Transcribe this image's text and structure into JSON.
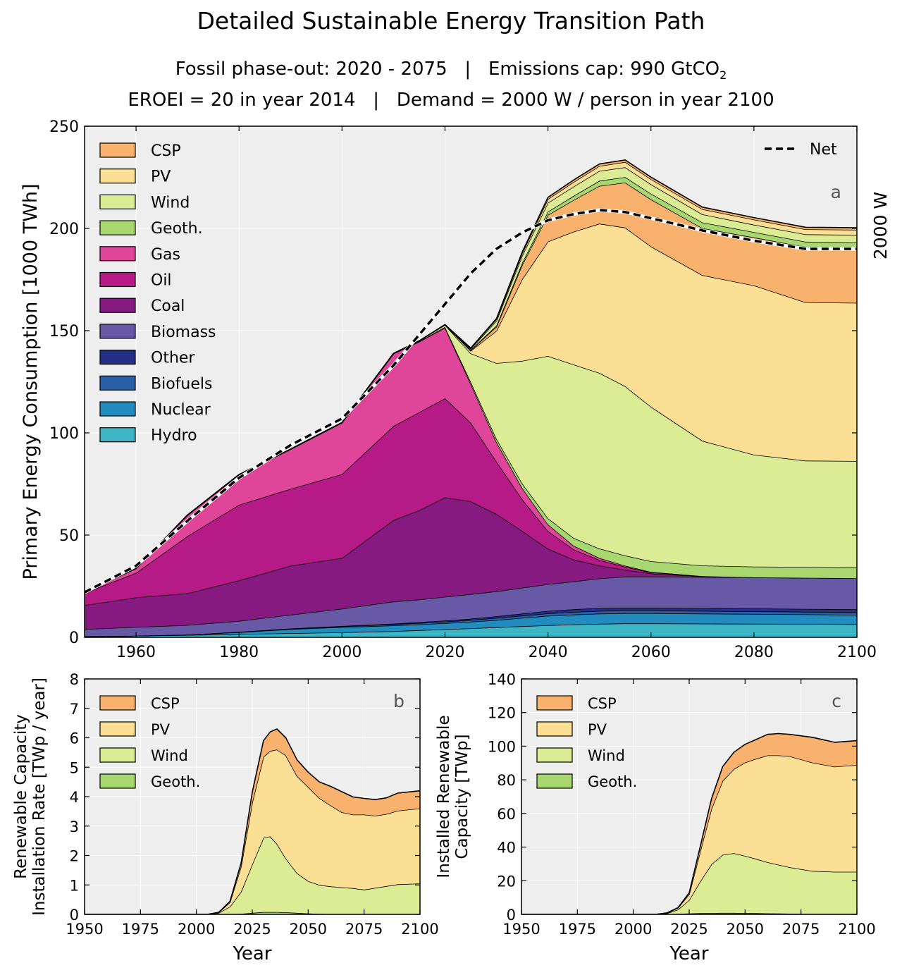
{
  "figure": {
    "title": "Detailed Sustainable Energy Transition Path",
    "subtitle_phaseout": "Fossil phase-out: 2020 - 2075",
    "subtitle_sep": "|",
    "subtitle_cap": "Emissions cap: 990 GtCO",
    "subtitle_cap_sub": "2",
    "subtitle2": "EROEI = 20 in year 2014   |   Demand = 2000 W / person in year 2100"
  },
  "colors": {
    "CSP": "#f9b26d",
    "PV": "#fbdf94",
    "Wind": "#dbec95",
    "Geoth.": "#a9d76f",
    "Gas": "#df4599",
    "Oil": "#b51a86",
    "Coal": "#861a80",
    "Biomass": "#6859a6",
    "Other": "#262f88",
    "Biofuels": "#2a5ea7",
    "Nuclear": "#228cbe",
    "Hydro": "#3eb5c4",
    "background": "#eeeeee",
    "grid": "#ffffff"
  },
  "chart_data": [
    {
      "id": "a",
      "type": "area",
      "stacked": true,
      "panel_label": "a",
      "right_label": "2000 W",
      "ylabel": "Primary Energy Consumption [1000 TWh]",
      "xlabel": "",
      "xlim": [
        1950,
        2100
      ],
      "ylim": [
        0,
        250
      ],
      "xticks": [
        1960,
        1980,
        2000,
        2020,
        2040,
        2060,
        2080,
        2100
      ],
      "yticks": [
        0,
        50,
        100,
        150,
        200,
        250
      ],
      "grid": true,
      "legend_position": "upper-left",
      "legend_order": [
        "CSP",
        "PV",
        "Wind",
        "Geoth.",
        "Gas",
        "Oil",
        "Coal",
        "Biomass",
        "Other",
        "Biofuels",
        "Nuclear",
        "Hydro"
      ],
      "net_legend": "Net",
      "x": [
        1950,
        1960,
        1970,
        1980,
        1990,
        2000,
        2010,
        2015,
        2020,
        2025,
        2030,
        2035,
        2040,
        2045,
        2050,
        2055,
        2060,
        2070,
        2080,
        2090,
        2100
      ],
      "series": [
        {
          "name": "Hydro",
          "values": [
            0.5,
            0.8,
            1.1,
            1.6,
            2.0,
            2.4,
            3.0,
            3.5,
            3.9,
            4.4,
            4.9,
            5.4,
            5.9,
            6.3,
            6.6,
            6.8,
            6.8,
            6.7,
            6.6,
            6.5,
            6.4
          ]
        },
        {
          "name": "Nuclear",
          "values": [
            0.0,
            0.0,
            0.2,
            0.9,
            2.0,
            2.6,
            2.8,
            2.8,
            3.0,
            3.2,
            3.6,
            4.1,
            4.6,
            4.8,
            5.0,
            5.0,
            5.0,
            4.9,
            4.8,
            4.7,
            4.6
          ]
        },
        {
          "name": "Biofuels",
          "values": [
            0.0,
            0.0,
            0.0,
            0.1,
            0.2,
            0.3,
            0.6,
            0.7,
            0.8,
            0.9,
            1.0,
            1.1,
            1.2,
            1.3,
            1.3,
            1.3,
            1.3,
            1.3,
            1.3,
            1.3,
            1.3
          ]
        },
        {
          "name": "Other",
          "values": [
            0.0,
            0.0,
            0.0,
            0.1,
            0.1,
            0.2,
            0.3,
            0.4,
            0.5,
            0.6,
            0.8,
            1.0,
            1.2,
            1.3,
            1.4,
            1.4,
            1.4,
            1.4,
            1.4,
            1.4,
            1.4
          ]
        },
        {
          "name": "Biomass",
          "values": [
            3.5,
            4.2,
            4.7,
            5.3,
            6.7,
            8.5,
            10.8,
            11.1,
            11.6,
            12.0,
            12.2,
            12.6,
            13.1,
            13.6,
            14.5,
            15.2,
            15.2,
            15.2,
            15.2,
            15.2,
            15.2
          ]
        },
        {
          "name": "Coal",
          "values": [
            11.7,
            14.5,
            15.5,
            19.8,
            24.0,
            24.8,
            39.8,
            43.6,
            48.6,
            45.4,
            37.8,
            27.8,
            17.3,
            10.7,
            6.3,
            3.3,
            1.5,
            0.3,
            0.0,
            0.0,
            0.0
          ]
        },
        {
          "name": "Oil",
          "values": [
            6.0,
            12.0,
            28.0,
            37.0,
            37.6,
            41.0,
            46.0,
            48.0,
            48.5,
            38.5,
            25.7,
            15.5,
            8.7,
            5.0,
            2.7,
            1.5,
            0.6,
            0.1,
            0.0,
            0.0,
            0.0
          ]
        },
        {
          "name": "Gas",
          "values": [
            0.5,
            2.2,
            10.3,
            14.8,
            19.4,
            25.2,
            35.5,
            34.5,
            34.5,
            19.0,
            9.5,
            5.5,
            3.2,
            1.8,
            1.0,
            0.5,
            0.2,
            0.0,
            0.0,
            0.0,
            0.0
          ]
        },
        {
          "name": "Geoth.",
          "values": [
            0.0,
            0.0,
            0.0,
            0.0,
            0.0,
            0.0,
            0.0,
            0.1,
            0.4,
            1.0,
            1.6,
            2.2,
            3.0,
            3.8,
            4.6,
            5.0,
            5.2,
            5.2,
            5.3,
            5.3,
            5.3
          ]
        },
        {
          "name": "Wind",
          "values": [
            0.0,
            0.0,
            0.0,
            0.0,
            0.0,
            0.0,
            0.0,
            0.3,
            1.0,
            13.9,
            37.0,
            60.0,
            79.4,
            84.8,
            85.9,
            82.8,
            75.6,
            61.0,
            54.7,
            52.0,
            52.0
          ]
        },
        {
          "name": "PV",
          "values": [
            0.0,
            0.0,
            0.0,
            0.0,
            0.0,
            0.0,
            0.0,
            0.0,
            0.1,
            1.2,
            15.8,
            40.0,
            56.0,
            65.0,
            73.0,
            77.6,
            78.4,
            81.0,
            82.8,
            77.5,
            77.4
          ]
        },
        {
          "name": "CSP",
          "values": [
            0.0,
            0.0,
            0.0,
            0.0,
            0.0,
            0.0,
            0.0,
            0.0,
            0.0,
            0.3,
            2.0,
            7.0,
            13.0,
            15.5,
            18.5,
            22.0,
            23.0,
            23.0,
            23.5,
            27.0,
            27.0
          ]
        },
        {
          "name": "Geoth. (upper)",
          "values": [
            0.0,
            0.0,
            0.0,
            0.0,
            0.0,
            0.0,
            0.0,
            0.0,
            0.0,
            0.2,
            0.6,
            1.0,
            1.6,
            2.0,
            2.5,
            2.7,
            2.8,
            2.8,
            2.6,
            2.6,
            2.6
          ]
        },
        {
          "name": "Wind (upper)",
          "values": [
            0.0,
            0.0,
            0.0,
            0.0,
            0.0,
            0.0,
            0.0,
            0.0,
            0.0,
            0.5,
            2.3,
            3.5,
            4.3,
            4.6,
            4.8,
            4.8,
            4.6,
            4.0,
            3.6,
            3.6,
            3.6
          ]
        },
        {
          "name": "PV (upper)",
          "values": [
            0.0,
            0.0,
            0.0,
            0.0,
            0.0,
            0.0,
            0.0,
            0.0,
            0.0,
            0.3,
            0.8,
            1.2,
            1.8,
            2.2,
            2.4,
            2.6,
            2.5,
            2.5,
            2.5,
            2.5,
            2.5
          ]
        },
        {
          "name": "CSP (upper)",
          "values": [
            0.0,
            0.0,
            0.0,
            0.0,
            0.0,
            0.0,
            0.0,
            0.0,
            0.0,
            0.1,
            0.3,
            0.6,
            0.9,
            1.0,
            1.0,
            1.0,
            1.0,
            1.0,
            1.0,
            1.0,
            1.0
          ]
        }
      ],
      "net": [
        22.0,
        35.0,
        57.0,
        78.0,
        94.0,
        107.0,
        133.0,
        148.0,
        163.0,
        178.0,
        190.0,
        198.0,
        204.0,
        207.0,
        209.0,
        208.0,
        205.0,
        199.0,
        194.0,
        190.0,
        190.0
      ]
    },
    {
      "id": "b",
      "type": "area",
      "stacked": true,
      "panel_label": "b",
      "ylabel": "Renewable Capacity\nInstallation Rate [TWp / year]",
      "xlabel": "Year",
      "xlim": [
        1950,
        2100
      ],
      "ylim": [
        0,
        8
      ],
      "xticks": [
        1950,
        1975,
        2000,
        2025,
        2050,
        2075,
        2100
      ],
      "yticks": [
        0,
        1,
        2,
        3,
        4,
        5,
        6,
        7,
        8
      ],
      "grid": true,
      "legend_position": "upper-left",
      "legend_order": [
        "CSP",
        "PV",
        "Wind",
        "Geoth."
      ],
      "x": [
        1950,
        2005,
        2010,
        2015,
        2020,
        2025,
        2030,
        2033,
        2036,
        2040,
        2045,
        2050,
        2055,
        2060,
        2065,
        2070,
        2075,
        2080,
        2085,
        2090,
        2100
      ],
      "series": [
        {
          "name": "Geoth.",
          "values": [
            0,
            0,
            0.0,
            0.01,
            0.02,
            0.05,
            0.08,
            0.08,
            0.08,
            0.07,
            0.05,
            0.03,
            0.02,
            0.01,
            0.01,
            0.01,
            0.01,
            0.01,
            0.01,
            0.01,
            0.01
          ]
        },
        {
          "name": "Wind",
          "values": [
            0,
            0,
            0.05,
            0.25,
            0.75,
            1.65,
            2.52,
            2.57,
            2.32,
            1.83,
            1.35,
            1.1,
            0.98,
            0.94,
            0.91,
            0.88,
            0.83,
            0.89,
            0.95,
            1.01,
            1.04
          ]
        },
        {
          "name": "PV",
          "values": [
            0,
            0,
            0.02,
            0.15,
            0.85,
            2.1,
            2.75,
            2.9,
            3.2,
            3.5,
            3.3,
            3.2,
            2.95,
            2.75,
            2.55,
            2.5,
            2.55,
            2.45,
            2.45,
            2.5,
            2.55
          ]
        },
        {
          "name": "CSP",
          "values": [
            0,
            0,
            0.0,
            0.03,
            0.12,
            0.35,
            0.55,
            0.65,
            0.7,
            0.6,
            0.55,
            0.5,
            0.55,
            0.65,
            0.7,
            0.6,
            0.55,
            0.55,
            0.55,
            0.6,
            0.6
          ]
        }
      ]
    },
    {
      "id": "c",
      "type": "area",
      "stacked": true,
      "panel_label": "c",
      "ylabel": "Installed Renewable\nCapacity [TWp]",
      "xlabel": "Year",
      "xlim": [
        1950,
        2100
      ],
      "ylim": [
        0,
        140
      ],
      "xticks": [
        1950,
        1975,
        2000,
        2025,
        2050,
        2075,
        2100
      ],
      "yticks": [
        0,
        20,
        40,
        60,
        80,
        100,
        120,
        140
      ],
      "grid": true,
      "legend_position": "upper-left",
      "legend_order": [
        "CSP",
        "PV",
        "Wind",
        "Geoth."
      ],
      "x": [
        1950,
        2010,
        2015,
        2020,
        2025,
        2030,
        2035,
        2040,
        2045,
        2050,
        2055,
        2060,
        2065,
        2070,
        2080,
        2090,
        2100
      ],
      "series": [
        {
          "name": "Geoth.",
          "values": [
            0,
            0,
            0.1,
            0.3,
            0.5,
            0.7,
            0.8,
            0.9,
            0.9,
            0.8,
            0.7,
            0.6,
            0.5,
            0.4,
            0.3,
            0.3,
            0.3
          ]
        },
        {
          "name": "Wind",
          "values": [
            0,
            0,
            0.5,
            2.5,
            8.0,
            19.0,
            29.0,
            34.5,
            35.5,
            34.0,
            32.3,
            30.4,
            29.0,
            27.6,
            25.5,
            25.0,
            25.0
          ]
        },
        {
          "name": "PV",
          "values": [
            0,
            0,
            0.2,
            1.0,
            3.5,
            18.0,
            33.0,
            44.0,
            50.0,
            55.5,
            59.5,
            63.5,
            65.0,
            66.0,
            64.5,
            62.5,
            63.5
          ]
        },
        {
          "name": "CSP",
          "values": [
            0,
            0,
            0.0,
            0.2,
            0.8,
            3.0,
            6.0,
            8.5,
            10.0,
            10.8,
            11.5,
            12.5,
            13.0,
            13.0,
            15.0,
            14.5,
            14.5
          ]
        }
      ]
    }
  ]
}
